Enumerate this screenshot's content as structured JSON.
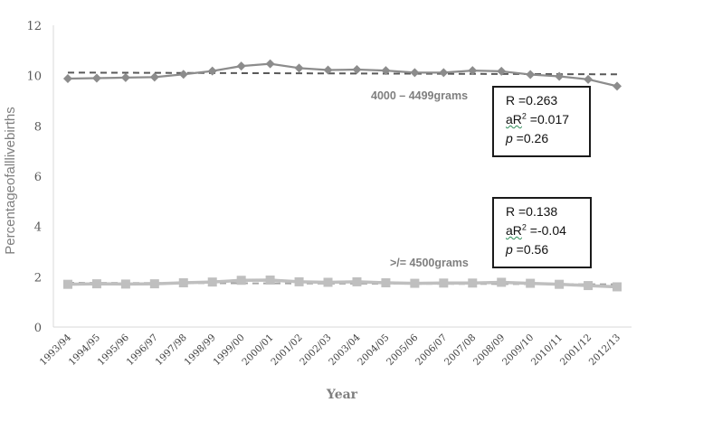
{
  "chart_data": {
    "type": "line",
    "xlabel": "Year",
    "ylabel": "Percentageofalllivebirths",
    "ylim": [
      0,
      12
    ],
    "yticks": [
      0,
      2,
      4,
      6,
      8,
      10,
      12
    ],
    "categories": [
      "1993/94",
      "1994/95",
      "1995/96",
      "1996/97",
      "1997/98",
      "1998/99",
      "1999/00",
      "2000/01",
      "2001/02",
      "2002/03",
      "2003/04",
      "2004/05",
      "2005/06",
      "2006/07",
      "2007/08",
      "2008/09",
      "2009/10",
      "2010/11",
      "2001/12",
      "2012/13"
    ],
    "series": [
      {
        "name": "4000 – 4499grams",
        "color": "#8c8c8c",
        "marker": "diamond",
        "values": [
          9.88,
          9.9,
          9.92,
          9.94,
          10.05,
          10.18,
          10.38,
          10.47,
          10.3,
          10.22,
          10.24,
          10.2,
          10.12,
          10.12,
          10.2,
          10.17,
          10.04,
          9.97,
          9.85,
          9.58
        ],
        "trend": [
          10.12,
          10.05
        ],
        "stats": {
          "r": "R =0.263",
          "ar2_prefix": "aR",
          "ar2_suffix": " =0.017",
          "p_letter": "p",
          "p_value": " =0.26"
        }
      },
      {
        "name": ">/= 4500grams",
        "color": "#bfbfbf",
        "marker": "square",
        "values": [
          1.7,
          1.72,
          1.71,
          1.72,
          1.76,
          1.79,
          1.86,
          1.87,
          1.8,
          1.78,
          1.8,
          1.76,
          1.74,
          1.75,
          1.75,
          1.78,
          1.74,
          1.7,
          1.65,
          1.6
        ],
        "trend": [
          1.76,
          1.7
        ],
        "stats": {
          "r": "R =0.138",
          "ar2_prefix": "aR",
          "ar2_suffix": " =-0.04",
          "p_letter": "p",
          "p_value": " =0.56"
        }
      }
    ],
    "legend": "none",
    "grid": false
  }
}
